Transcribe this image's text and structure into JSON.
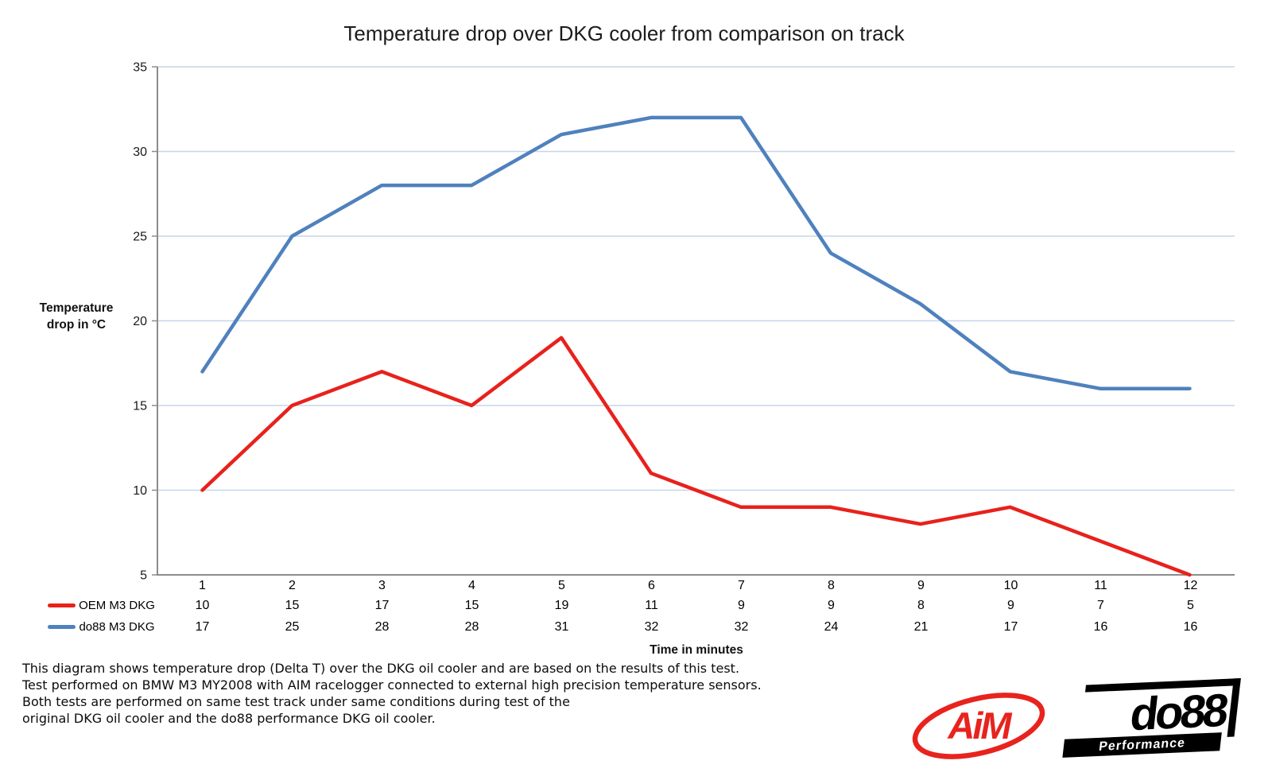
{
  "title": "Temperature drop over DKG cooler from comparison on track",
  "chart_data": {
    "type": "line",
    "title": "Temperature drop over DKG cooler from comparison on track",
    "ylabel": "Temperature drop in °C",
    "ylabel_lines": [
      "Temperature",
      "drop in °C"
    ],
    "xlabel": "Time in minutes",
    "categories": [
      "1",
      "2",
      "3",
      "4",
      "5",
      "6",
      "7",
      "8",
      "9",
      "10",
      "11",
      "12"
    ],
    "series": [
      {
        "name": "OEM M3 DKG",
        "color": "#e8211c",
        "values": [
          10,
          15,
          17,
          15,
          19,
          11,
          9,
          9,
          8,
          9,
          7,
          5
        ]
      },
      {
        "name": "do88 M3 DKG",
        "color": "#4f81bd",
        "values": [
          17,
          25,
          28,
          28,
          31,
          32,
          32,
          24,
          21,
          17,
          16,
          16
        ]
      }
    ],
    "ylim": [
      5,
      35
    ],
    "yticks": [
      35,
      30,
      25,
      20,
      15,
      10,
      5
    ],
    "grid": true,
    "gridline_color": "#c6d6eb",
    "axis_color": "#8c8c8c",
    "legend_position": "table-left"
  },
  "footer": {
    "lines": [
      "This diagram shows temperature drop (Delta T) over the DKG oil cooler and are based on the results of this test.",
      "Test performed on BMW M3 MY2008 with AIM racelogger connected to external high precision temperature sensors.",
      "Both tests are performed on same test track under same conditions during test of the",
      "original DKG oil cooler and the do88 performance DKG oil cooler."
    ]
  },
  "logos": {
    "aim": {
      "text": "AiM",
      "color": "#e8231e"
    },
    "do88": {
      "text": "do88",
      "subtext": "Performance",
      "color": "#000000"
    }
  }
}
